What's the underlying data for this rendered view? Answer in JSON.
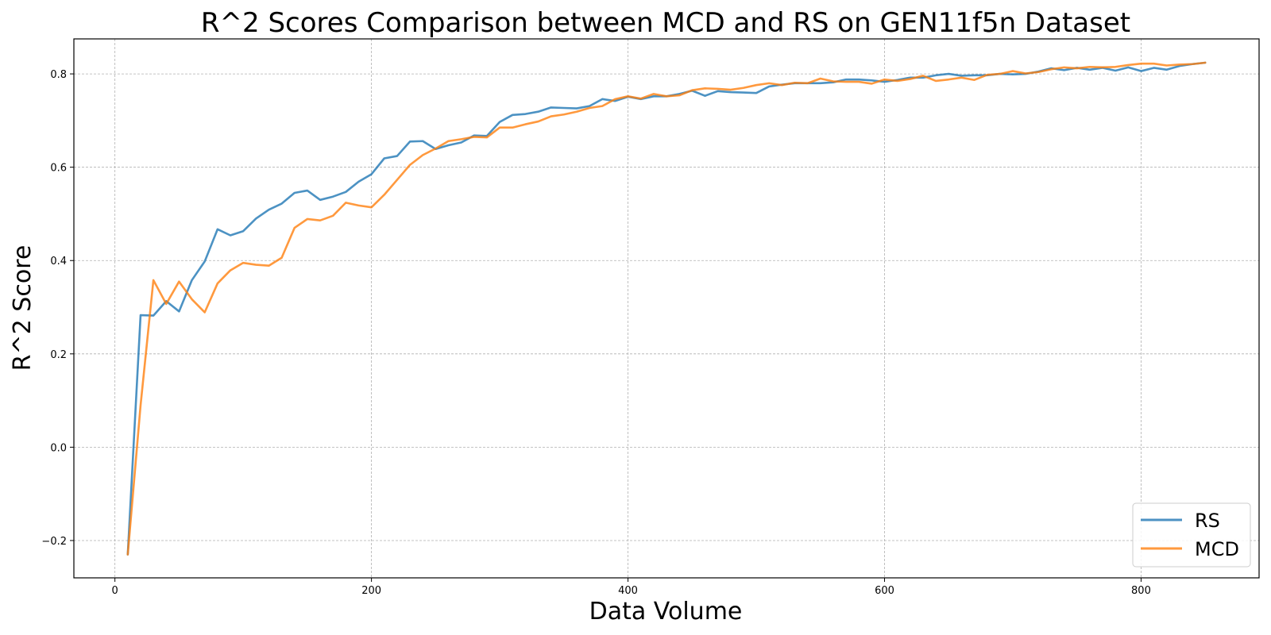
{
  "chart_data": {
    "type": "line",
    "title": "R^2 Scores Comparison between MCD and RS on GEN11f5n Dataset",
    "xlabel": "Data Volume",
    "ylabel": "R^2 Score",
    "xlim": [
      -32,
      892
    ],
    "ylim": [
      -0.28,
      0.875
    ],
    "xticks": [
      0,
      200,
      400,
      600,
      800
    ],
    "yticks": [
      -0.2,
      0.0,
      0.2,
      0.4,
      0.6,
      0.8
    ],
    "xtick_labels": [
      "0",
      "200",
      "400",
      "600",
      "800"
    ],
    "ytick_labels": [
      "−0.2",
      "0.0",
      "0.2",
      "0.4",
      "0.6",
      "0.8"
    ],
    "grid": true,
    "legend_position": "lower-right",
    "x": [
      10,
      20,
      30,
      40,
      50,
      60,
      70,
      80,
      90,
      100,
      110,
      120,
      130,
      140,
      150,
      160,
      170,
      180,
      190,
      200,
      210,
      220,
      230,
      240,
      250,
      260,
      270,
      280,
      290,
      300,
      310,
      320,
      330,
      340,
      350,
      360,
      370,
      380,
      390,
      400,
      410,
      420,
      430,
      440,
      450,
      460,
      470,
      480,
      490,
      500,
      510,
      520,
      530,
      540,
      550,
      560,
      570,
      580,
      590,
      600,
      610,
      620,
      630,
      640,
      650,
      660,
      670,
      680,
      690,
      700,
      710,
      720,
      730,
      740,
      750,
      760,
      770,
      780,
      790,
      800,
      810,
      820,
      830,
      840,
      850
    ],
    "series": [
      {
        "name": "RS",
        "color": "#1f77b4",
        "values": [
          -0.23,
          0.283,
          0.282,
          0.313,
          0.291,
          0.358,
          0.398,
          0.467,
          0.454,
          0.463,
          0.49,
          0.509,
          0.522,
          0.545,
          0.55,
          0.53,
          0.537,
          0.547,
          0.569,
          0.585,
          0.619,
          0.624,
          0.655,
          0.656,
          0.639,
          0.647,
          0.653,
          0.668,
          0.667,
          0.697,
          0.712,
          0.714,
          0.719,
          0.728,
          0.727,
          0.726,
          0.731,
          0.746,
          0.742,
          0.751,
          0.746,
          0.752,
          0.752,
          0.757,
          0.764,
          0.753,
          0.763,
          0.761,
          0.76,
          0.759,
          0.773,
          0.777,
          0.78,
          0.78,
          0.78,
          0.782,
          0.788,
          0.788,
          0.786,
          0.783,
          0.787,
          0.792,
          0.792,
          0.797,
          0.8,
          0.796,
          0.797,
          0.797,
          0.8,
          0.799,
          0.8,
          0.805,
          0.812,
          0.808,
          0.813,
          0.809,
          0.813,
          0.807,
          0.814,
          0.806,
          0.813,
          0.809,
          0.817,
          0.821,
          0.824
        ]
      },
      {
        "name": "MCD",
        "color": "#ff7f0e",
        "values": [
          -0.23,
          0.09,
          0.358,
          0.307,
          0.355,
          0.317,
          0.289,
          0.351,
          0.379,
          0.395,
          0.391,
          0.389,
          0.406,
          0.47,
          0.489,
          0.486,
          0.496,
          0.524,
          0.518,
          0.514,
          0.541,
          0.573,
          0.605,
          0.626,
          0.64,
          0.656,
          0.66,
          0.665,
          0.664,
          0.685,
          0.685,
          0.692,
          0.698,
          0.709,
          0.713,
          0.719,
          0.727,
          0.731,
          0.746,
          0.752,
          0.747,
          0.757,
          0.752,
          0.754,
          0.765,
          0.769,
          0.768,
          0.766,
          0.77,
          0.776,
          0.78,
          0.776,
          0.781,
          0.78,
          0.79,
          0.784,
          0.783,
          0.783,
          0.779,
          0.788,
          0.785,
          0.789,
          0.796,
          0.785,
          0.788,
          0.792,
          0.787,
          0.798,
          0.8,
          0.806,
          0.801,
          0.804,
          0.81,
          0.814,
          0.812,
          0.815,
          0.814,
          0.815,
          0.819,
          0.822,
          0.822,
          0.818,
          0.82,
          0.821,
          0.824
        ]
      }
    ]
  }
}
